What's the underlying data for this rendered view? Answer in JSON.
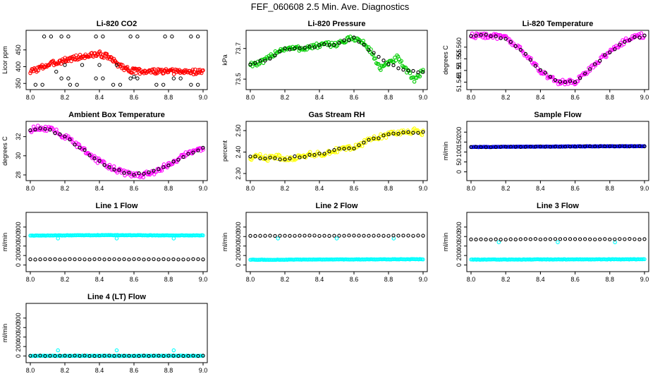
{
  "page": {
    "title": "FEF_060608  2.5 Min. Ave. Diagnostics"
  },
  "chart_data": [
    {
      "type": "scatter",
      "title": "Li-820 CO2",
      "ylabel": "Licor ppm",
      "xlim": [
        8.0,
        9.0
      ],
      "ylim": [
        340,
        500
      ],
      "xticks": [
        "8.0",
        "8.2",
        "8.4",
        "8.6",
        "8.8",
        "9.0"
      ],
      "yticks": [
        350,
        400,
        450
      ],
      "series": [
        {
          "color": "#ff0000",
          "x": [
            8.0,
            8.1,
            8.2,
            8.3,
            8.4,
            8.45,
            8.5,
            8.55,
            8.6,
            8.8,
            9.0
          ],
          "y": [
            385,
            405,
            420,
            430,
            438,
            430,
            410,
            395,
            387,
            385,
            385
          ]
        },
        {
          "color": "#000000",
          "x": [
            8.1,
            8.2,
            8.4,
            8.6,
            8.8,
            8.95,
            8.05,
            8.25,
            8.5,
            8.75,
            8.95,
            8.2,
            8.4,
            8.6,
            8.85
          ],
          "y": [
            490,
            490,
            490,
            490,
            490,
            490,
            346,
            346,
            346,
            346,
            346,
            365,
            365,
            365,
            365
          ]
        }
      ]
    },
    {
      "type": "scatter",
      "title": "Li-820 Pressure",
      "ylabel": "kPa",
      "xlim": [
        8.0,
        9.0
      ],
      "ylim": [
        73.45,
        73.8
      ],
      "xticks": [
        "8.0",
        "8.2",
        "8.4",
        "8.6",
        "8.8",
        "9.0"
      ],
      "yticks": [
        73.5,
        73.7
      ],
      "series": [
        {
          "color": "#00cc00",
          "x": [
            8.0,
            8.05,
            8.1,
            8.15,
            8.2,
            8.3,
            8.4,
            8.5,
            8.55,
            8.6,
            8.65,
            8.7,
            8.75,
            8.8,
            8.85,
            8.9,
            8.95,
            9.0
          ],
          "y": [
            73.6,
            73.6,
            73.63,
            73.68,
            73.7,
            73.7,
            73.72,
            73.73,
            73.75,
            73.77,
            73.74,
            73.68,
            73.57,
            73.6,
            73.64,
            73.56,
            73.5,
            73.55
          ]
        },
        {
          "color": "#000000",
          "x": [
            8.0,
            8.1,
            8.2,
            8.3,
            8.4,
            8.5,
            8.6,
            8.7,
            8.8,
            8.9,
            9.0
          ],
          "y": [
            73.6,
            73.63,
            73.7,
            73.7,
            73.72,
            73.73,
            73.77,
            73.68,
            73.6,
            73.55,
            73.55
          ]
        }
      ]
    },
    {
      "type": "scatter",
      "title": "Li-820 Temperature",
      "ylabel": "degrees C",
      "xlim": [
        8.0,
        9.0
      ],
      "ylim": [
        51.543,
        51.566
      ],
      "xticks": [
        "8.0",
        "8.2",
        "8.4",
        "8.6",
        "8.8",
        "9.0"
      ],
      "yticks": [
        51.545,
        51.55,
        51.555,
        51.56
      ],
      "ytick_labels": [
        "51.545",
        "51.55",
        "51.555",
        "51.560"
      ],
      "series": [
        {
          "color": "#ff00ff",
          "x": [
            8.0,
            8.1,
            8.2,
            8.25,
            8.3,
            8.35,
            8.4,
            8.45,
            8.5,
            8.55,
            8.6,
            8.65,
            8.7,
            8.75,
            8.8,
            8.85,
            8.9,
            8.95,
            9.0
          ],
          "y": [
            51.565,
            51.565,
            51.564,
            51.561,
            51.558,
            51.554,
            51.55,
            51.547,
            51.545,
            51.545,
            51.545,
            51.548,
            51.552,
            51.555,
            51.558,
            51.561,
            51.563,
            51.565,
            51.565
          ]
        },
        {
          "color": "#000000",
          "x": [
            8.0,
            8.1,
            8.2,
            8.3,
            8.4,
            8.5,
            8.6,
            8.7,
            8.8,
            8.9,
            9.0
          ],
          "y": [
            51.565,
            51.565,
            51.564,
            51.558,
            51.55,
            51.545,
            51.545,
            51.552,
            51.558,
            51.563,
            51.565
          ]
        }
      ]
    },
    {
      "type": "scatter",
      "title": "Ambient Box Temperature",
      "ylabel": "degrees C",
      "xlim": [
        8.0,
        9.0
      ],
      "ylim": [
        27.7,
        33.3
      ],
      "xticks": [
        "8.0",
        "8.2",
        "8.4",
        "8.6",
        "8.8",
        "9.0"
      ],
      "yticks": [
        28,
        30,
        32
      ],
      "series": [
        {
          "color": "#ff00ff",
          "x": [
            8.0,
            8.05,
            8.1,
            8.15,
            8.2,
            8.25,
            8.3,
            8.35,
            8.4,
            8.45,
            8.5,
            8.55,
            8.6,
            8.65,
            8.7,
            8.75,
            8.8,
            8.85,
            8.9,
            8.95,
            9.0
          ],
          "y": [
            32.7,
            32.9,
            32.8,
            32.5,
            32.0,
            31.4,
            30.7,
            30.0,
            29.4,
            28.9,
            28.5,
            28.2,
            28.05,
            28.0,
            28.2,
            28.6,
            29.1,
            29.6,
            30.1,
            30.5,
            30.8
          ]
        },
        {
          "color": "#000000",
          "x": [
            8.0,
            8.1,
            8.2,
            8.3,
            8.4,
            8.5,
            8.6,
            8.7,
            8.8,
            8.9,
            9.0
          ],
          "y": [
            32.7,
            32.8,
            32.0,
            30.7,
            29.4,
            28.5,
            28.05,
            28.2,
            29.1,
            30.1,
            30.8
          ]
        }
      ]
    },
    {
      "type": "scatter",
      "title": "Gas Stream RH",
      "ylabel": "percent",
      "xlim": [
        8.0,
        9.0
      ],
      "ylim": [
        2.28,
        2.53
      ],
      "xticks": [
        "8.0",
        "8.2",
        "8.4",
        "8.6",
        "8.8",
        "9.0"
      ],
      "yticks": [
        2.3,
        2.4,
        2.5
      ],
      "ytick_labels": [
        "2.30",
        "2.40",
        "2.50"
      ],
      "series": [
        {
          "color": "#ffff00",
          "x": [
            8.0,
            8.05,
            8.1,
            8.15,
            8.2,
            8.25,
            8.3,
            8.35,
            8.4,
            8.45,
            8.5,
            8.55,
            8.6,
            8.65,
            8.7,
            8.75,
            8.8,
            8.85,
            8.9,
            8.95,
            9.0
          ],
          "y": [
            2.37,
            2.38,
            2.37,
            2.38,
            2.37,
            2.37,
            2.38,
            2.39,
            2.39,
            2.4,
            2.41,
            2.42,
            2.42,
            2.44,
            2.46,
            2.47,
            2.48,
            2.49,
            2.49,
            2.5,
            2.49
          ]
        },
        {
          "color": "#000000",
          "x": [
            8.0,
            8.1,
            8.2,
            8.3,
            8.4,
            8.5,
            8.6,
            8.7,
            8.8,
            8.9,
            9.0
          ],
          "y": [
            2.38,
            2.37,
            2.37,
            2.38,
            2.39,
            2.41,
            2.42,
            2.46,
            2.48,
            2.49,
            2.49
          ]
        }
      ]
    },
    {
      "type": "scatter",
      "title": "Sample Flow",
      "ylabel": "ml/min",
      "xlim": [
        8.0,
        9.0
      ],
      "ylim": [
        -30,
        240
      ],
      "xticks": [
        "8.0",
        "8.2",
        "8.4",
        "8.6",
        "8.8",
        "9.0"
      ],
      "yticks": [
        0,
        50,
        100,
        150,
        200
      ],
      "series": [
        {
          "color": "#0000ff",
          "x": [
            8.0,
            8.2,
            8.4,
            8.6,
            8.8,
            9.0
          ],
          "y": [
            125,
            126,
            127,
            128,
            129,
            129
          ]
        },
        {
          "color": "#000000",
          "x": [
            8.0,
            8.1,
            8.2,
            8.3,
            8.4,
            8.5,
            8.6,
            8.7,
            8.8,
            8.9,
            9.0
          ],
          "y": [
            125,
            125,
            126,
            126,
            127,
            127,
            128,
            128,
            129,
            129,
            129
          ]
        }
      ]
    },
    {
      "type": "scatter",
      "title": "Line 1 Flow",
      "ylabel": "ml/min",
      "xlim": [
        8.0,
        9.0
      ],
      "ylim": [
        -80,
        1050
      ],
      "xticks": [
        "8.0",
        "8.2",
        "8.4",
        "8.6",
        "8.8",
        "9.0"
      ],
      "yticks": [
        0,
        200,
        400,
        600,
        800
      ],
      "series": [
        {
          "color": "#00ffff",
          "x": [
            8.0,
            8.2,
            8.4,
            8.6,
            8.8,
            9.0,
            8.16,
            8.5,
            8.83
          ],
          "y": [
            620,
            625,
            630,
            628,
            625,
            625,
            560,
            560,
            560
          ]
        },
        {
          "color": "#000000",
          "x": [
            8.0,
            8.1,
            8.2,
            8.3,
            8.4,
            8.5,
            8.6,
            8.7,
            8.8,
            8.9,
            9.0
          ],
          "y": [
            120,
            120,
            120,
            120,
            120,
            120,
            120,
            120,
            120,
            120,
            120
          ]
        }
      ]
    },
    {
      "type": "scatter",
      "title": "Line 2 Flow",
      "ylabel": "ml/min",
      "xlim": [
        8.0,
        9.0
      ],
      "ylim": [
        -80,
        1050
      ],
      "xticks": [
        "8.0",
        "8.2",
        "8.4",
        "8.6",
        "8.8",
        "9.0"
      ],
      "yticks": [
        0,
        200,
        400,
        600,
        800
      ],
      "series": [
        {
          "color": "#00ffff",
          "x": [
            8.0,
            8.2,
            8.4,
            8.6,
            8.8,
            9.0,
            8.16,
            8.5,
            8.83
          ],
          "y": [
            110,
            112,
            115,
            118,
            120,
            122,
            560,
            560,
            560
          ]
        },
        {
          "color": "#000000",
          "x": [
            8.0,
            8.1,
            8.2,
            8.3,
            8.4,
            8.5,
            8.6,
            8.7,
            8.8,
            8.9,
            9.0
          ],
          "y": [
            615,
            615,
            615,
            618,
            618,
            618,
            618,
            618,
            618,
            618,
            618
          ]
        }
      ]
    },
    {
      "type": "scatter",
      "title": "Line 3 Flow",
      "ylabel": "ml/min",
      "xlim": [
        8.0,
        9.0
      ],
      "ylim": [
        -80,
        1050
      ],
      "xticks": [
        "8.0",
        "8.2",
        "8.4",
        "8.6",
        "8.8",
        "9.0"
      ],
      "yticks": [
        0,
        200,
        400,
        600,
        800
      ],
      "series": [
        {
          "color": "#00ffff",
          "x": [
            8.0,
            8.2,
            8.4,
            8.6,
            8.8,
            9.0,
            8.16,
            8.5,
            8.83
          ],
          "y": [
            115,
            115,
            118,
            118,
            120,
            120,
            480,
            480,
            480
          ]
        },
        {
          "color": "#000000",
          "x": [
            8.0,
            8.1,
            8.2,
            8.3,
            8.4,
            8.5,
            8.6,
            8.7,
            8.8,
            8.9,
            9.0
          ],
          "y": [
            540,
            540,
            540,
            545,
            545,
            545,
            545,
            545,
            545,
            545,
            545
          ]
        }
      ]
    },
    {
      "type": "scatter",
      "title": "Line 4 (LT) Flow",
      "ylabel": "ml/min",
      "xlim": [
        8.0,
        9.0
      ],
      "ylim": [
        -80,
        1050
      ],
      "xticks": [
        "8.0",
        "8.2",
        "8.4",
        "8.6",
        "8.8",
        "9.0"
      ],
      "yticks": [
        0,
        200,
        400,
        600,
        800
      ],
      "series": [
        {
          "color": "#00ffff",
          "x": [
            8.0,
            8.2,
            8.4,
            8.6,
            8.8,
            9.0,
            8.16,
            8.5,
            8.83
          ],
          "y": [
            5,
            5,
            5,
            5,
            5,
            5,
            120,
            120,
            120
          ]
        },
        {
          "color": "#000000",
          "x": [
            8.0,
            8.1,
            8.2,
            8.3,
            8.4,
            8.5,
            8.6,
            8.7,
            8.8,
            8.9,
            9.0
          ],
          "y": [
            5,
            5,
            5,
            5,
            5,
            5,
            5,
            5,
            5,
            5,
            5
          ]
        }
      ]
    }
  ]
}
